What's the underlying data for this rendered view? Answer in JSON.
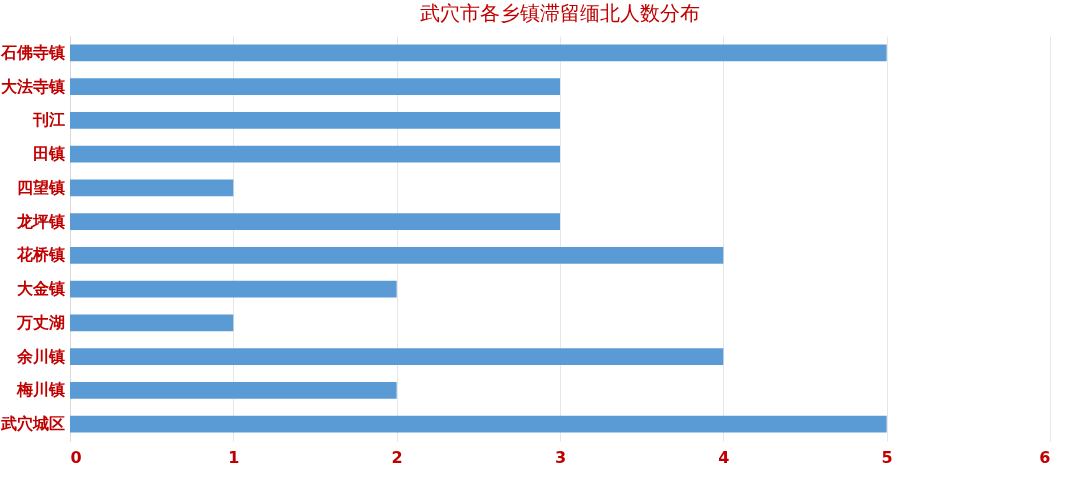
{
  "chart_data": {
    "type": "bar",
    "orientation": "horizontal",
    "title": "武穴市各乡镇滞留缅北人数分布",
    "categories": [
      "石佛寺镇",
      "大法寺镇",
      "刊江",
      "田镇",
      "四望镇",
      "龙坪镇",
      "花桥镇",
      "大金镇",
      "万丈湖",
      "余川镇",
      "梅川镇",
      "武穴城区"
    ],
    "values": [
      5,
      3,
      3,
      3,
      1,
      3,
      4,
      2,
      1,
      4,
      2,
      5
    ],
    "color": "#5b9bd5",
    "xlim": [
      0,
      6
    ],
    "xticks": [
      0,
      1,
      2,
      3,
      4,
      5,
      6
    ],
    "grid": "x"
  }
}
